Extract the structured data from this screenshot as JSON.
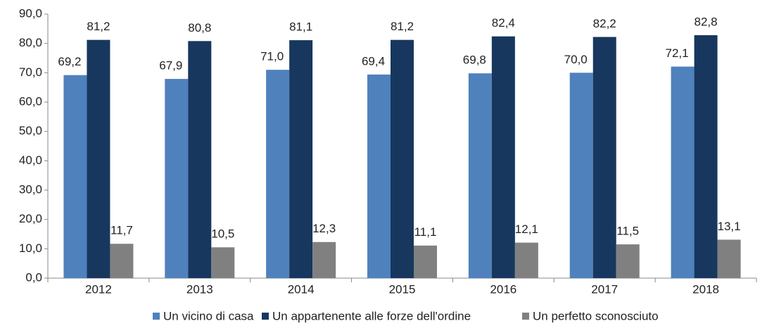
{
  "chart_data": {
    "type": "bar",
    "categories": [
      "2012",
      "2013",
      "2014",
      "2015",
      "2016",
      "2017",
      "2018"
    ],
    "series": [
      {
        "name": "Un vicino di casa",
        "color": "#4f81bd",
        "values": [
          69.2,
          67.9,
          71.0,
          69.4,
          69.8,
          70.0,
          72.1
        ],
        "value_labels": [
          "69,2",
          "67,9",
          "71,0",
          "69,4",
          "69,8",
          "70,0",
          "72,1"
        ]
      },
      {
        "name": "Un appartenente alle forze dell'ordine",
        "color": "#17375e",
        "values": [
          81.2,
          80.8,
          81.1,
          81.2,
          82.4,
          82.2,
          82.8
        ],
        "value_labels": [
          "81,2",
          "80,8",
          "81,1",
          "81,2",
          "82,4",
          "82,2",
          "82,8"
        ]
      },
      {
        "name": "Un perfetto sconosciuto",
        "color": "#808080",
        "values": [
          11.7,
          10.5,
          12.3,
          11.1,
          12.1,
          11.5,
          13.1
        ],
        "value_labels": [
          "11,7",
          "10,5",
          "12,3",
          "11,1",
          "12,1",
          "11,5",
          "13,1"
        ]
      }
    ],
    "ylim": [
      0,
      90
    ],
    "yticks": [
      {
        "value": 0,
        "label": "0,0"
      },
      {
        "value": 10,
        "label": "10,0"
      },
      {
        "value": 20,
        "label": "20,0"
      },
      {
        "value": 30,
        "label": "30,0"
      },
      {
        "value": 40,
        "label": "40,0"
      },
      {
        "value": 50,
        "label": "50,0"
      },
      {
        "value": 60,
        "label": "60,0"
      },
      {
        "value": 70,
        "label": "70,0"
      },
      {
        "value": 80,
        "label": "80,0"
      },
      {
        "value": 90,
        "label": "90,0"
      }
    ],
    "grid": false,
    "legend": "bottom"
  }
}
